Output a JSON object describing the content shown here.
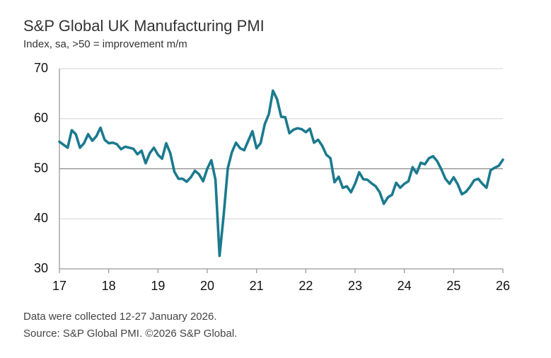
{
  "chart_data": {
    "type": "line",
    "title": "S&P Global UK Manufacturing PMI",
    "subtitle": "Index, sa, >50 = improvement m/m",
    "notes": [
      "Data were collected 12-27 January 2026.",
      "Source: S&P Global PMI. ©2026 S&P Global."
    ],
    "xlim": [
      17,
      26
    ],
    "xticks": [
      17,
      18,
      19,
      20,
      21,
      22,
      23,
      24,
      25,
      26
    ],
    "ylim": [
      30,
      70
    ],
    "yticks": [
      30,
      40,
      50,
      60,
      70
    ],
    "grid": true,
    "baseline": 50,
    "x": [
      17,
      17.083,
      17.167,
      17.25,
      17.333,
      17.417,
      17.5,
      17.583,
      17.667,
      17.75,
      17.833,
      17.917,
      18,
      18.083,
      18.167,
      18.25,
      18.333,
      18.417,
      18.5,
      18.583,
      18.667,
      18.75,
      18.833,
      18.917,
      19,
      19.083,
      19.167,
      19.25,
      19.333,
      19.417,
      19.5,
      19.583,
      19.667,
      19.75,
      19.833,
      19.917,
      20,
      20.083,
      20.167,
      20.25,
      20.333,
      20.417,
      20.5,
      20.583,
      20.667,
      20.75,
      20.833,
      20.917,
      21,
      21.083,
      21.167,
      21.25,
      21.333,
      21.417,
      21.5,
      21.583,
      21.667,
      21.75,
      21.833,
      21.917,
      22,
      22.083,
      22.167,
      22.25,
      22.333,
      22.417,
      22.5,
      22.583,
      22.667,
      22.75,
      22.833,
      22.917,
      23,
      23.083,
      23.167,
      23.25,
      23.333,
      23.417,
      23.5,
      23.583,
      23.667,
      23.75,
      23.833,
      23.917,
      24,
      24.083,
      24.167,
      24.25,
      24.333,
      24.417,
      24.5,
      24.583,
      24.667,
      24.75,
      24.833,
      24.917,
      25,
      25.083,
      25.167,
      25.25,
      25.333,
      25.417,
      25.5,
      25.583,
      25.667,
      25.75,
      25.833,
      25.917,
      26
    ],
    "series": [
      {
        "name": "UK Manufacturing PMI",
        "color": "#1b7a8e",
        "values": [
          55.4,
          54.8,
          54.2,
          57.7,
          56.9,
          54.2,
          55.1,
          56.9,
          55.6,
          56.5,
          58.2,
          55.8,
          55.1,
          55.2,
          54.9,
          53.9,
          54.4,
          54.2,
          54.0,
          52.9,
          53.6,
          51.1,
          53.1,
          54.2,
          52.8,
          52.0,
          55.1,
          53.1,
          49.4,
          48.0,
          48.0,
          47.4,
          48.3,
          49.6,
          48.9,
          47.5,
          50.0,
          51.7,
          47.8,
          32.6,
          40.7,
          50.1,
          53.3,
          55.2,
          54.1,
          53.7,
          55.6,
          57.5,
          54.1,
          55.1,
          58.9,
          60.9,
          65.6,
          63.9,
          60.4,
          60.3,
          57.1,
          57.8,
          58.1,
          57.9,
          57.3,
          58.0,
          55.2,
          55.8,
          54.6,
          52.8,
          52.1,
          47.3,
          48.4,
          46.2,
          46.5,
          45.3,
          47.0,
          49.3,
          47.9,
          47.8,
          47.1,
          46.5,
          45.3,
          43.0,
          44.3,
          44.8,
          47.2,
          46.2,
          47.0,
          47.5,
          50.3,
          49.1,
          51.2,
          50.9,
          52.1,
          52.5,
          51.5,
          49.9,
          48.0,
          47.0,
          48.3,
          46.9,
          44.9,
          45.4,
          46.4,
          47.7,
          48.0,
          47.0,
          46.2,
          49.7,
          50.2,
          50.6,
          51.8
        ]
      }
    ]
  }
}
